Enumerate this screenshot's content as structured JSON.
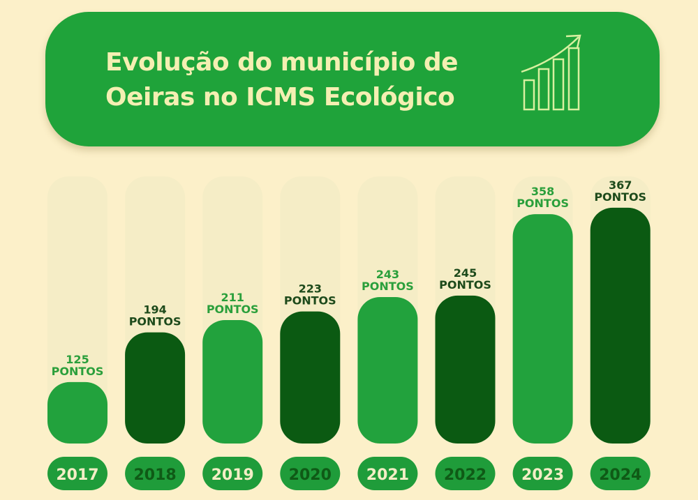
{
  "title_lines": [
    "Evolução do município de",
    "Oeiras no ICMS Ecológico"
  ],
  "icon": "growth-bar-chart-arrow-icon",
  "colors": {
    "background": "#fcf0c9",
    "header": "#1fa33a",
    "title": "#f4efb2",
    "bar_light": "#22a23d",
    "bar_dark": "#0b5a12",
    "track": "#f3ecc6",
    "label_light": "#2a9f3b",
    "label_dark": "#1d4a1b",
    "year_pill": "#1f9c3a",
    "year_text_light": "#f3eec6",
    "year_text_dark": "#0f5a16"
  },
  "chart_data": {
    "type": "bar",
    "title": "Evolução do município de Oeiras no ICMS Ecológico",
    "categories": [
      "2017",
      "2018",
      "2019",
      "2020",
      "2021",
      "2022",
      "2023",
      "2024"
    ],
    "values": [
      125,
      194,
      211,
      223,
      243,
      245,
      358,
      367
    ],
    "value_unit": "PONTOS",
    "bar_styles": [
      "light",
      "dark",
      "light",
      "dark",
      "light",
      "dark",
      "light",
      "dark"
    ],
    "grid": false
  }
}
